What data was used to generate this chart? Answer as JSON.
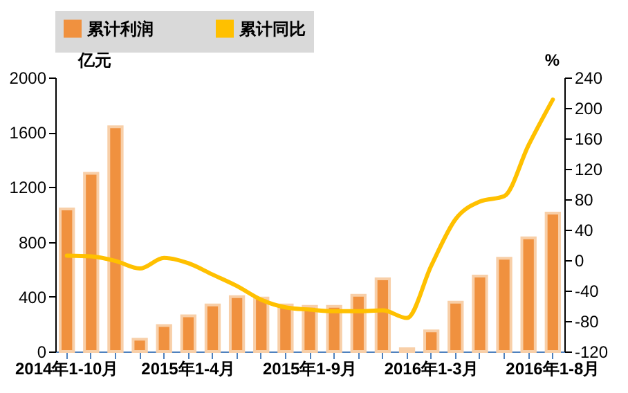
{
  "chart_data": {
    "type": "bar",
    "ylabel": "亿元",
    "y2label": "%",
    "categories": [
      "2014年1-10月",
      null,
      null,
      null,
      null,
      "2015年1-4月",
      null,
      null,
      null,
      null,
      "2015年1-9月",
      null,
      null,
      null,
      null,
      "2016年1-3月",
      null,
      null,
      null,
      null,
      "2016年1-8月"
    ],
    "series": [
      {
        "name": "累计利润",
        "color": "#f0913f",
        "values": [
          1040,
          1300,
          1640,
          90,
          190,
          260,
          340,
          400,
          390,
          340,
          330,
          330,
          410,
          530,
          20,
          150,
          360,
          550,
          680,
          830,
          1010
        ]
      },
      {
        "name": "累计同比",
        "type": "line",
        "axis": "y2",
        "color": "#ffc000",
        "values": [
          6,
          5,
          -1,
          -11,
          3,
          -4,
          -19,
          -34,
          -52,
          -62,
          -65,
          -67,
          -67,
          -66,
          -76,
          -7,
          54,
          77,
          84,
          151,
          211
        ]
      }
    ],
    "ylim": [
      0,
      2000
    ],
    "yticks": [
      0,
      400,
      800,
      1200,
      1600,
      2000
    ],
    "y2lim": [
      -120,
      240
    ],
    "y2ticks": [
      -120,
      -80,
      -40,
      0,
      40,
      80,
      120,
      160,
      200,
      240
    ],
    "legend": "top",
    "grid": false
  }
}
